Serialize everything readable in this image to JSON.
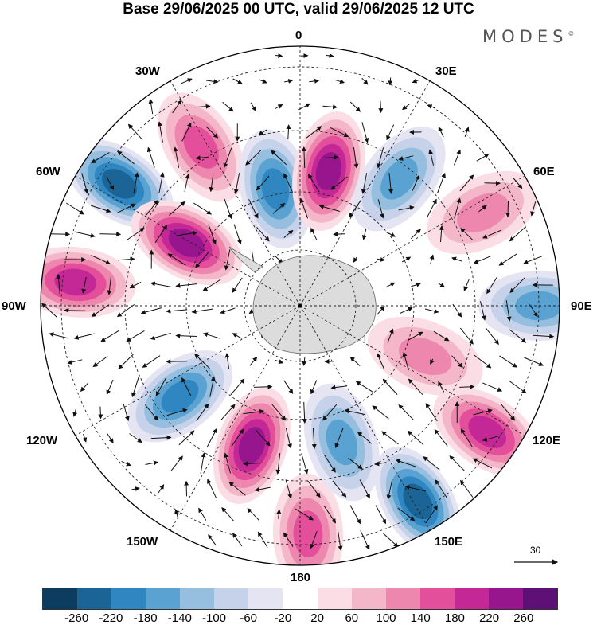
{
  "header": {
    "title": "Base 29/06/2025 00 UTC, valid 29/06/2025 12 UTC",
    "brand": "MODES",
    "brand_mark": "©"
  },
  "map": {
    "projection": "south-polar-stereographic",
    "longitude_labels": {
      "lon_0": "0",
      "lon_30e": "30E",
      "lon_60e": "60E",
      "lon_90e": "90E",
      "lon_120e": "120E",
      "lon_150e": "150E",
      "lon_180": "180",
      "lon_150w": "150W",
      "lon_120w": "120W",
      "lon_90w": "90W",
      "lon_60w": "60W",
      "lon_30w": "30W"
    },
    "reference_vector": "30",
    "anomaly_centres": [
      {
        "lon": -32,
        "lat_ring": 0.72,
        "value": 140,
        "sign": "positive"
      },
      {
        "lon": -56,
        "lat_ring": 0.84,
        "value": -220,
        "sign": "negative"
      },
      {
        "lon": -12,
        "lat_ring": 0.46,
        "value": -180,
        "sign": "negative"
      },
      {
        "lon": 12,
        "lat_ring": 0.53,
        "value": 240,
        "sign": "positive"
      },
      {
        "lon": 38,
        "lat_ring": 0.62,
        "value": -140,
        "sign": "negative"
      },
      {
        "lon": 63,
        "lat_ring": 0.79,
        "value": 120,
        "sign": "positive"
      },
      {
        "lon": 90,
        "lat_ring": 0.92,
        "value": -140,
        "sign": "negative"
      },
      {
        "lon": 112,
        "lat_ring": 0.52,
        "value": 100,
        "sign": "positive"
      },
      {
        "lon": 124,
        "lat_ring": 0.87,
        "value": 200,
        "sign": "positive"
      },
      {
        "lon": 149,
        "lat_ring": 0.88,
        "value": -240,
        "sign": "negative"
      },
      {
        "lon": 178,
        "lat_ring": 0.88,
        "value": 150,
        "sign": "positive"
      },
      {
        "lon": 163,
        "lat_ring": 0.55,
        "value": -160,
        "sign": "negative"
      },
      {
        "lon": -161,
        "lat_ring": 0.57,
        "value": 240,
        "sign": "positive"
      },
      {
        "lon": -127,
        "lat_ring": 0.58,
        "value": -180,
        "sign": "negative"
      },
      {
        "lon": -84,
        "lat_ring": 0.87,
        "value": 200,
        "sign": "positive"
      },
      {
        "lon": -61,
        "lat_ring": 0.5,
        "value": 220,
        "sign": "positive"
      }
    ]
  },
  "colorbar": {
    "colors": [
      "#0c3d5e",
      "#1a6496",
      "#2f86c0",
      "#5aa2d1",
      "#96bfdf",
      "#c5d2ea",
      "#e4e4f3",
      "#ffffff",
      "#fbdde6",
      "#f4b6c9",
      "#ee87ad",
      "#e34f9a",
      "#c42896",
      "#98168d",
      "#5e1077"
    ],
    "tick_labels": [
      "-260",
      "-220",
      "-180",
      "-140",
      "-100",
      "-60",
      "-20",
      "20",
      "60",
      "100",
      "140",
      "180",
      "220",
      "260"
    ]
  }
}
